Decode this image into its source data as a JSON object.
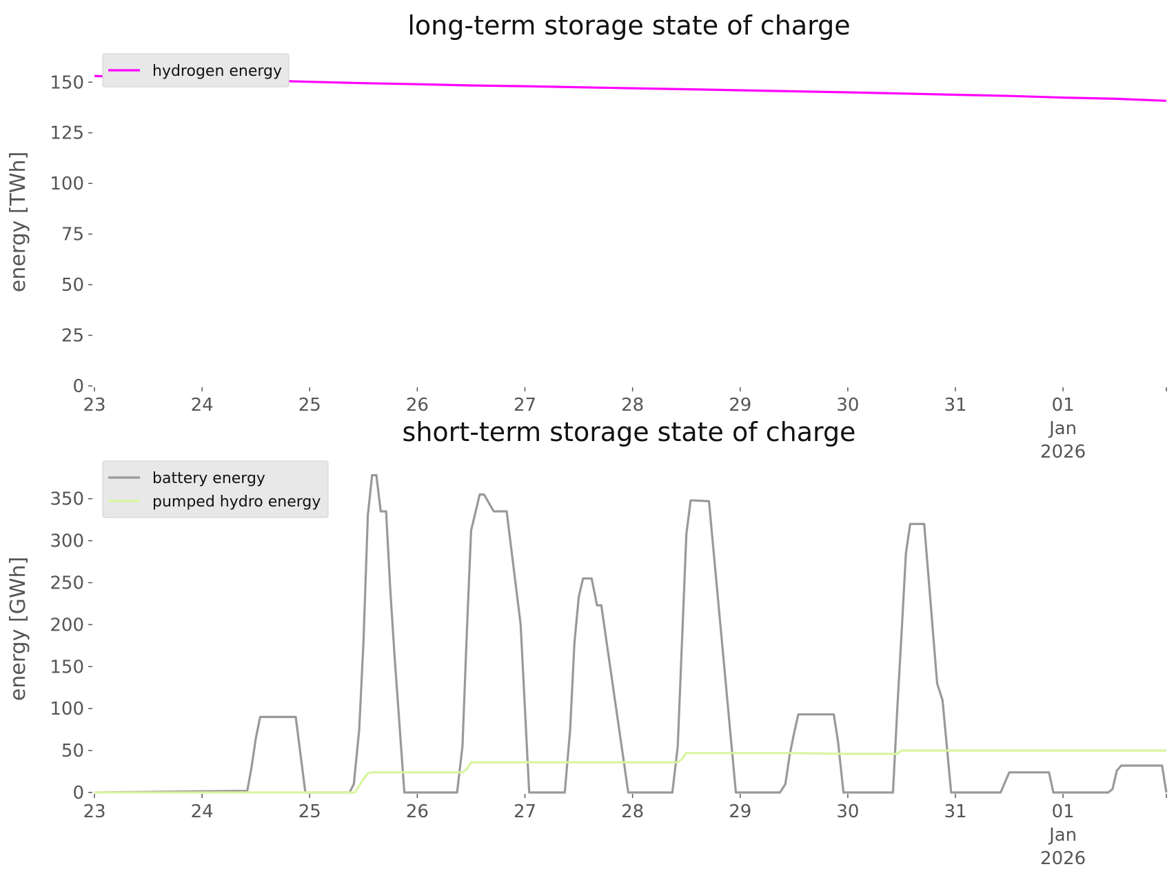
{
  "chart_data": [
    {
      "type": "line",
      "title": "long-term storage state of charge",
      "ylabel": "energy [TWh]",
      "xlabel": "",
      "ylim": [
        0,
        162
      ],
      "yticks": [
        0,
        25,
        50,
        75,
        100,
        125,
        150
      ],
      "xticks": [
        {
          "x": 0,
          "label": "23"
        },
        {
          "x": 1,
          "label": "24"
        },
        {
          "x": 2,
          "label": "25"
        },
        {
          "x": 3,
          "label": "26"
        },
        {
          "x": 4,
          "label": "27"
        },
        {
          "x": 5,
          "label": "28"
        },
        {
          "x": 6,
          "label": "29"
        },
        {
          "x": 7,
          "label": "30"
        },
        {
          "x": 8,
          "label": "31"
        },
        {
          "x": 9,
          "label": "01\nJan\n2026"
        }
      ],
      "xlim": [
        0,
        9.96
      ],
      "legend": "top-left",
      "series": [
        {
          "name": "hydrogen energy",
          "color": "#ff00ff",
          "x": [
            0,
            0.5,
            1,
            1.5,
            2,
            2.5,
            3,
            3.5,
            4,
            4.5,
            5,
            5.5,
            6,
            6.5,
            7,
            7.5,
            8,
            8.5,
            9,
            9.5,
            9.96
          ],
          "values": [
            153,
            152.5,
            151.8,
            150.9,
            150.2,
            149.5,
            149.0,
            148.4,
            148.0,
            147.5,
            147.0,
            146.5,
            146.0,
            145.5,
            145.0,
            144.4,
            143.8,
            143.2,
            142.4,
            141.8,
            140.8
          ]
        }
      ]
    },
    {
      "type": "line",
      "title": "short-term storage state of charge",
      "ylabel": "energy [GWh]",
      "xlabel": "",
      "ylim": [
        0,
        390
      ],
      "yticks": [
        0,
        50,
        100,
        150,
        200,
        250,
        300,
        350
      ],
      "xticks": [
        {
          "x": 0,
          "label": "23"
        },
        {
          "x": 1,
          "label": "24"
        },
        {
          "x": 2,
          "label": "25"
        },
        {
          "x": 3,
          "label": "26"
        },
        {
          "x": 4,
          "label": "27"
        },
        {
          "x": 5,
          "label": "28"
        },
        {
          "x": 6,
          "label": "29"
        },
        {
          "x": 7,
          "label": "30"
        },
        {
          "x": 8,
          "label": "31"
        },
        {
          "x": 9,
          "label": "01\nJan\n2026"
        }
      ],
      "xlim": [
        0,
        9.96
      ],
      "legend": "top-left",
      "series": [
        {
          "name": "battery energy",
          "color": "#999999",
          "x": [
            0,
            1.42,
            1.46,
            1.5,
            1.54,
            1.87,
            1.91,
            1.96,
            2.37,
            2.41,
            2.46,
            2.5,
            2.54,
            2.58,
            2.62,
            2.66,
            2.71,
            2.75,
            2.79,
            2.88,
            3.04,
            3.37,
            3.42,
            3.46,
            3.5,
            3.58,
            3.62,
            3.71,
            3.83,
            3.96,
            4.04,
            4.37,
            4.42,
            4.46,
            4.5,
            4.54,
            4.62,
            4.67,
            4.71,
            4.96,
            5.04,
            5.37,
            5.42,
            5.5,
            5.54,
            5.58,
            5.71,
            5.96,
            6.04,
            6.37,
            6.42,
            6.46,
            6.5,
            6.54,
            6.87,
            6.91,
            6.96,
            7.37,
            7.42,
            7.46,
            7.5,
            7.54,
            7.58,
            7.71,
            7.83,
            7.88,
            7.96,
            8.04,
            8.42,
            8.5,
            8.87,
            8.91,
            9.42,
            9.46,
            9.5,
            9.54,
            9.92,
            9.96
          ],
          "values": [
            0,
            2,
            30,
            65,
            90,
            90,
            50,
            0,
            0,
            10,
            75,
            180,
            330,
            378,
            378,
            335,
            335,
            240,
            160,
            0,
            0,
            0,
            55,
            190,
            312,
            355,
            355,
            335,
            335,
            200,
            0,
            0,
            75,
            178,
            233,
            255,
            255,
            223,
            223,
            0,
            0,
            0,
            55,
            308,
            348,
            348,
            347,
            0,
            0,
            0,
            10,
            45,
            70,
            93,
            93,
            60,
            0,
            0,
            0,
            100,
            190,
            285,
            320,
            320,
            130,
            110,
            0,
            0,
            0,
            24,
            24,
            0,
            0,
            4,
            26,
            32,
            32,
            0
          ]
        },
        {
          "name": "pumped hydro energy",
          "color": "#d8f5a0",
          "x": [
            0,
            2.42,
            2.46,
            2.5,
            2.54,
            2.58,
            3.42,
            3.46,
            3.5,
            4.5,
            5.42,
            5.46,
            5.5,
            6.5,
            7.0,
            7.46,
            7.5,
            7.54,
            9.96
          ],
          "values": [
            0,
            0,
            8,
            16,
            23,
            24,
            24,
            28,
            36,
            36,
            36,
            40,
            47,
            47,
            46,
            46,
            50,
            50,
            50
          ]
        }
      ]
    }
  ]
}
